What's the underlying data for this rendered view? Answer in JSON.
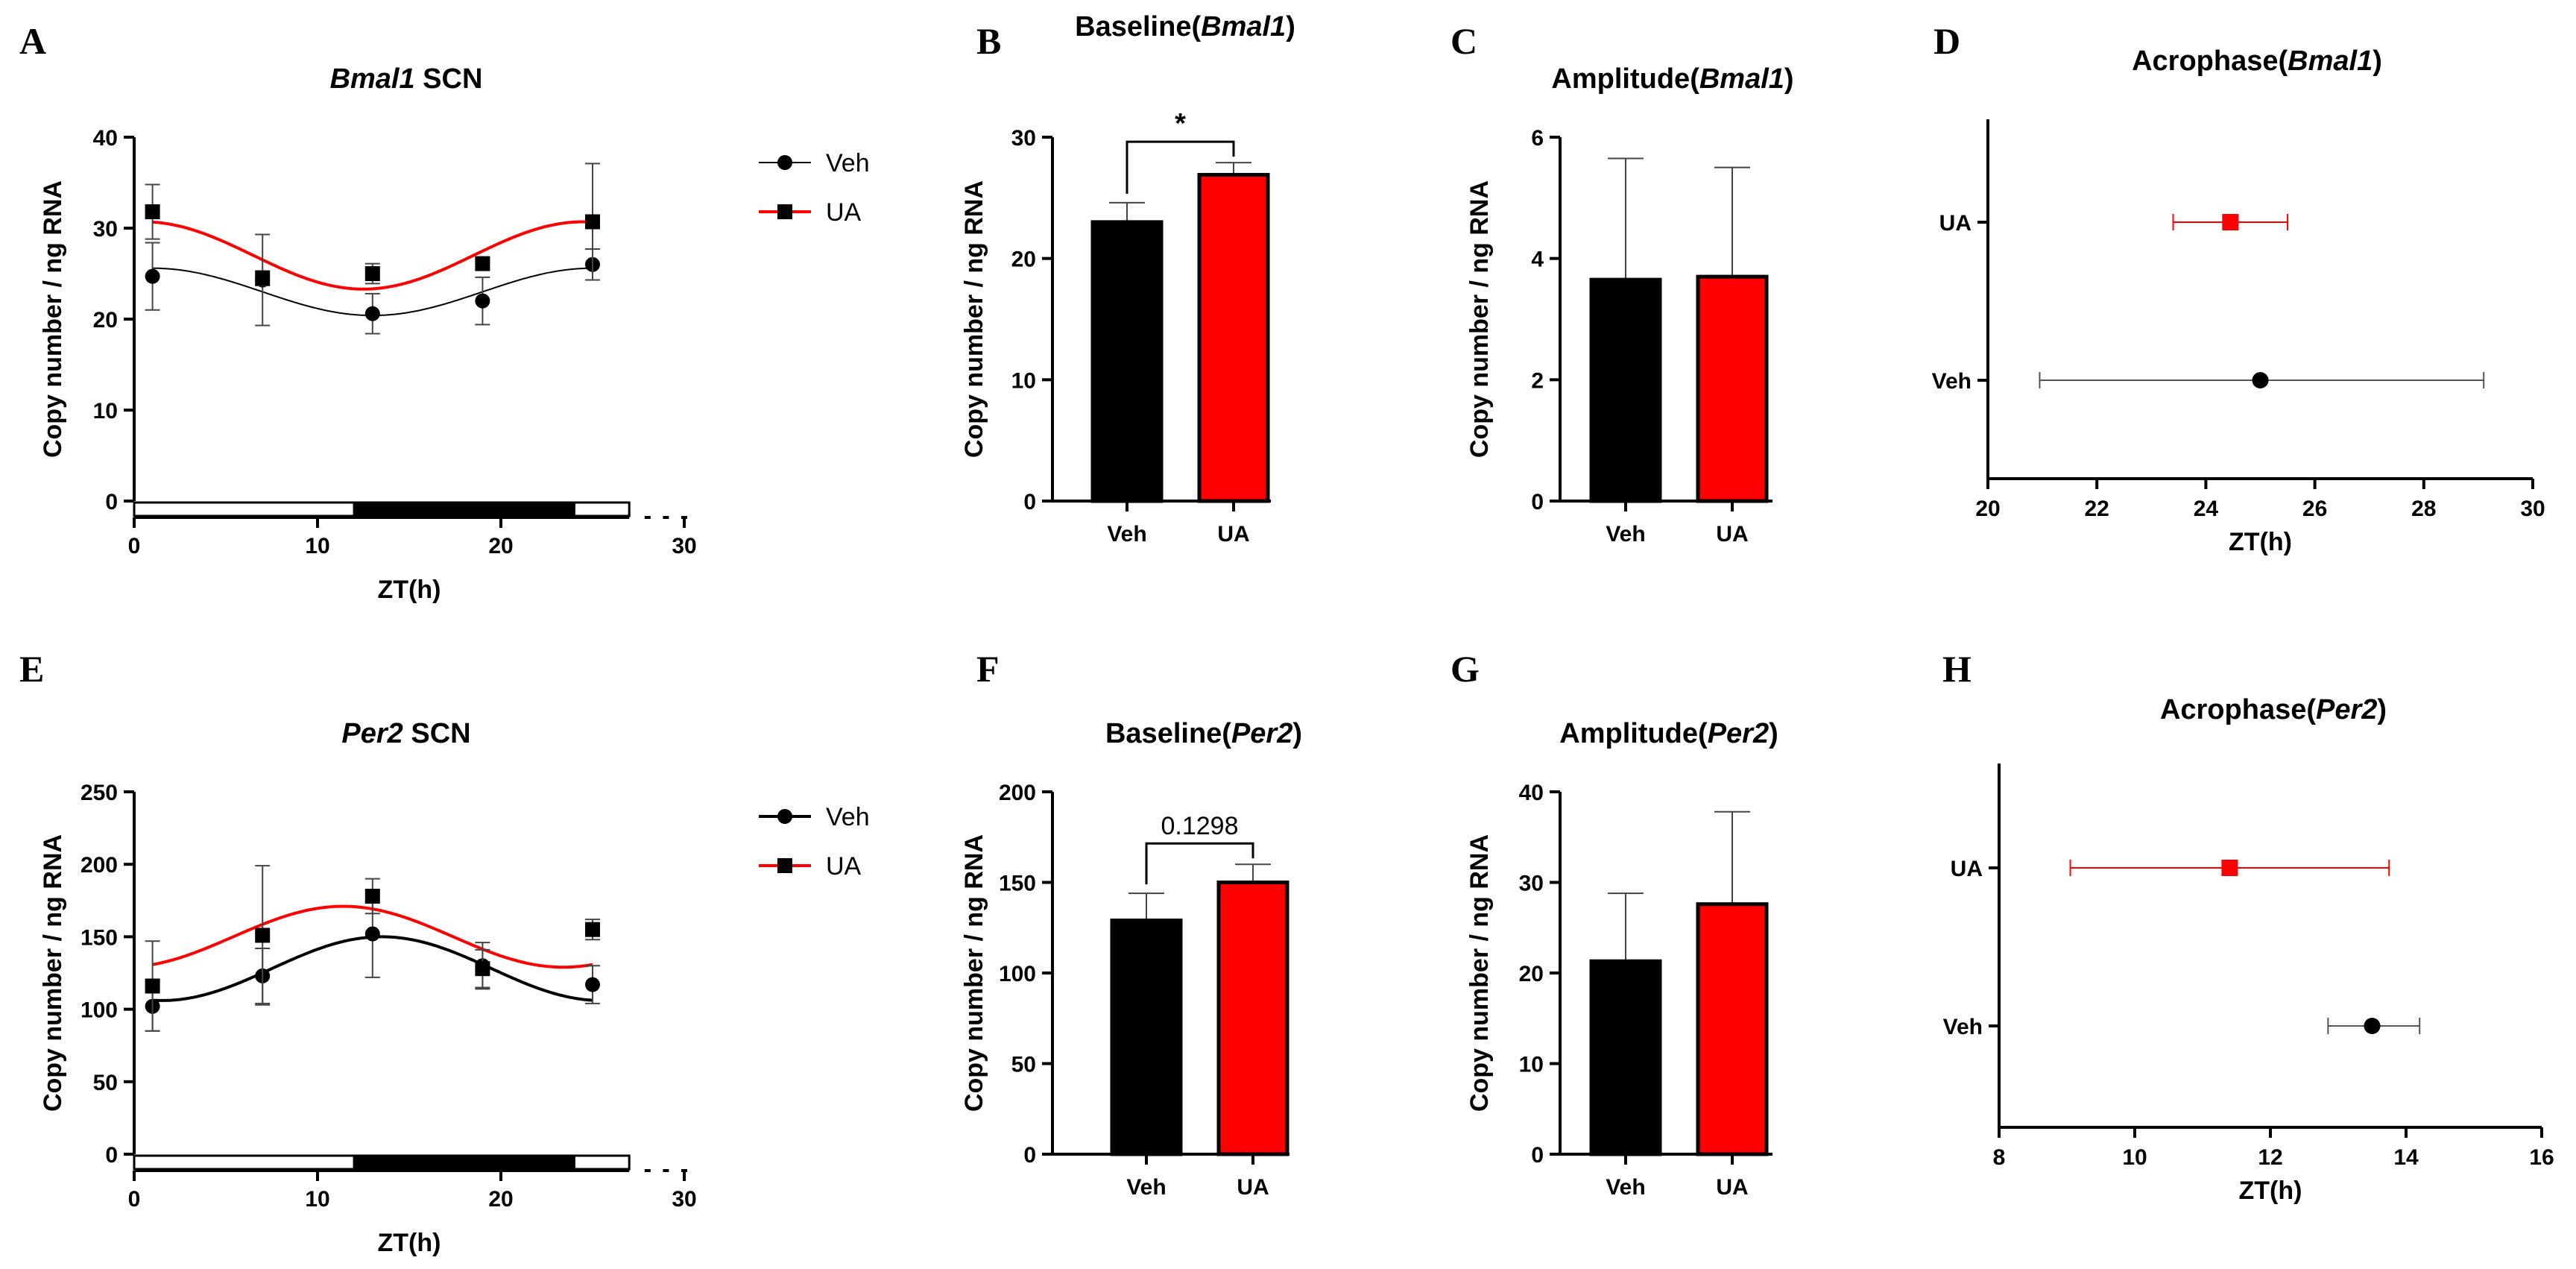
{
  "colors": {
    "veh": "#000000",
    "ua": "#ff0000",
    "errVeh": "#555555",
    "errUA": "#ff0000"
  },
  "chart_data": [
    {
      "id": "A",
      "letter": "A",
      "type": "line",
      "title": {
        "gene": "Bmal1",
        "suffix": " SCN"
      },
      "xlabel": "ZT(h)",
      "ylabel": "Copy number / ng RNA",
      "xlim": [
        0,
        30
      ],
      "ylim": [
        0,
        40
      ],
      "xticks": [
        0,
        10,
        20,
        30
      ],
      "yticks": [
        0,
        10,
        20,
        30,
        40
      ],
      "lightdark": {
        "light": [
          0,
          12
        ],
        "dark": [
          12,
          24
        ],
        "light2": [
          24,
          27
        ]
      },
      "legend": [
        "Veh",
        "UA"
      ],
      "series": [
        {
          "name": "Veh",
          "x": [
            1,
            7,
            13,
            19,
            25
          ],
          "y": [
            24.7,
            24.3,
            20.6,
            22.0,
            26.0
          ],
          "err": [
            3.7,
            5.0,
            2.2,
            2.6,
            1.7
          ],
          "fit": {
            "mesor": 23.0,
            "amp": 2.6,
            "acro": 25.0
          }
        },
        {
          "name": "UA",
          "x": [
            1,
            7,
            13,
            19,
            25
          ],
          "y": [
            31.8,
            24.5,
            25.0,
            26.1,
            30.7
          ],
          "err": [
            3.0,
            0.8,
            1.1,
            0.6,
            6.4
          ],
          "fit": {
            "mesor": 27.0,
            "amp": 3.7,
            "acro": 24.5
          }
        }
      ]
    },
    {
      "id": "B",
      "letter": "B",
      "type": "bar",
      "title": {
        "prefix": "Baseline(",
        "gene": "Bmal1",
        "suffix": ")"
      },
      "ylabel": "Copy number / ng RNA",
      "ylim": [
        0,
        30
      ],
      "yticks": [
        0,
        10,
        20,
        30
      ],
      "categories": [
        "Veh",
        "UA"
      ],
      "values": [
        23.0,
        26.9
      ],
      "err": [
        1.6,
        1.0
      ],
      "significance": "*"
    },
    {
      "id": "C",
      "letter": "C",
      "type": "bar",
      "title": {
        "prefix": "Amplitude(",
        "gene": "Bmal1",
        "suffix": ")"
      },
      "ylabel": "Copy number / ng RNA",
      "ylim": [
        0,
        6
      ],
      "yticks": [
        0,
        2,
        4,
        6
      ],
      "categories": [
        "Veh",
        "UA"
      ],
      "values": [
        3.65,
        3.7
      ],
      "err": [
        2.0,
        1.8
      ]
    },
    {
      "id": "D",
      "letter": "D",
      "type": "scatter",
      "title": {
        "prefix": "Acrophase(",
        "gene": "Bmal1",
        "suffix": ")"
      },
      "xlabel": "ZT(h)",
      "xlim": [
        20,
        30
      ],
      "xticks": [
        20,
        22,
        24,
        26,
        28,
        30
      ],
      "categories": [
        "UA",
        "Veh"
      ],
      "points": [
        {
          "name": "UA",
          "value": 24.45,
          "lo": 23.4,
          "hi": 25.5
        },
        {
          "name": "Veh",
          "value": 25.0,
          "lo": 20.95,
          "hi": 29.1
        }
      ]
    },
    {
      "id": "E",
      "letter": "E",
      "type": "line",
      "title": {
        "gene": "Per2",
        "suffix": " SCN"
      },
      "xlabel": "ZT(h)",
      "ylabel": "Copy number / ng RNA",
      "xlim": [
        0,
        30
      ],
      "ylim": [
        0,
        250
      ],
      "xticks": [
        0,
        10,
        20,
        30
      ],
      "yticks": [
        0,
        50,
        100,
        150,
        200,
        250
      ],
      "lightdark": {
        "light": [
          0,
          12
        ],
        "dark": [
          12,
          24
        ],
        "light2": [
          24,
          27
        ]
      },
      "legend": [
        "Veh",
        "UA"
      ],
      "series": [
        {
          "name": "Veh",
          "x": [
            1,
            7,
            13,
            19,
            25
          ],
          "y": [
            102,
            123,
            152,
            130,
            117
          ],
          "err": [
            17,
            19,
            30,
            16,
            13
          ],
          "fit": {
            "mesor": 128,
            "amp": 22,
            "acro": 13.5
          }
        },
        {
          "name": "UA",
          "x": [
            1,
            7,
            13,
            19,
            25
          ],
          "y": [
            116,
            151,
            178,
            128,
            155
          ],
          "err": [
            31,
            48,
            12,
            13,
            7
          ],
          "fit": {
            "mesor": 150,
            "amp": 21,
            "acro": 11.4
          }
        }
      ]
    },
    {
      "id": "F",
      "letter": "F",
      "type": "bar",
      "title": {
        "prefix": "Baseline(",
        "gene": "Per2",
        "suffix": ")"
      },
      "ylabel": "Copy number / ng RNA",
      "ylim": [
        0,
        200
      ],
      "yticks": [
        0,
        50,
        100,
        150,
        200
      ],
      "categories": [
        "Veh",
        "UA"
      ],
      "values": [
        129,
        150
      ],
      "err": [
        15,
        10
      ],
      "significance": "0.1298"
    },
    {
      "id": "G",
      "letter": "G",
      "type": "bar",
      "title": {
        "prefix": "Amplitude(",
        "gene": "Per2",
        "suffix": ")"
      },
      "ylabel": "Copy number / ng RNA",
      "ylim": [
        0,
        40
      ],
      "yticks": [
        0,
        10,
        20,
        30,
        40
      ],
      "categories": [
        "Veh",
        "UA"
      ],
      "values": [
        21.3,
        27.6
      ],
      "err": [
        7.5,
        10.2
      ]
    },
    {
      "id": "H",
      "letter": "H",
      "type": "scatter",
      "title": {
        "prefix": "Acrophase(",
        "gene": "Per2",
        "suffix": ")"
      },
      "xlabel": "ZT(h)",
      "xlim": [
        8,
        16
      ],
      "xticks": [
        8,
        10,
        12,
        14,
        16
      ],
      "categories": [
        "UA",
        "Veh"
      ],
      "points": [
        {
          "name": "UA",
          "value": 11.4,
          "lo": 9.05,
          "hi": 13.75
        },
        {
          "name": "Veh",
          "value": 13.5,
          "lo": 12.85,
          "hi": 14.2
        }
      ]
    }
  ]
}
